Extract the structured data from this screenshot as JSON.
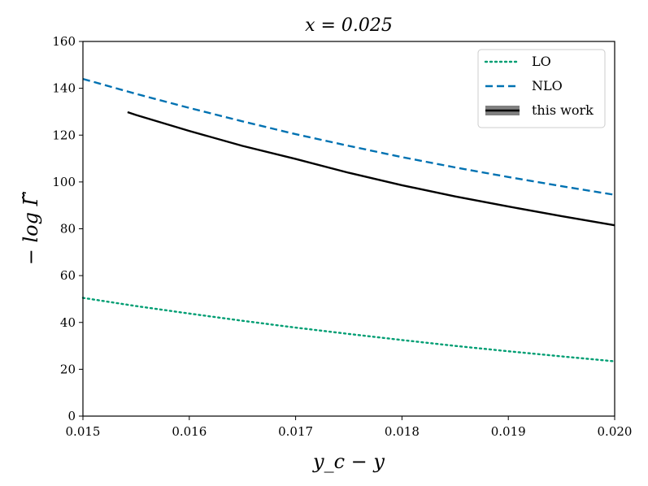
{
  "chart_data": {
    "type": "line",
    "title": "x = 0.025",
    "xlabel": "y_c − y",
    "ylabel": "− log Γ̃",
    "xlim": [
      0.015,
      0.02
    ],
    "ylim": [
      0,
      160
    ],
    "xticks": [
      0.015,
      0.016,
      0.017,
      0.018,
      0.019,
      0.02
    ],
    "xtick_labels": [
      "0.015",
      "0.016",
      "0.017",
      "0.018",
      "0.019",
      "0.020"
    ],
    "yticks": [
      0,
      20,
      40,
      60,
      80,
      100,
      120,
      140,
      160
    ],
    "ytick_labels": [
      "0",
      "20",
      "40",
      "60",
      "80",
      "100",
      "120",
      "140",
      "160"
    ],
    "grid": false,
    "legend_position": "top-right",
    "series": [
      {
        "name": "LO",
        "style": "dotted",
        "color": "#009e73",
        "x": [
          0.015,
          0.0155,
          0.016,
          0.0165,
          0.017,
          0.0175,
          0.018,
          0.0185,
          0.019,
          0.0195,
          0.02
        ],
        "y": [
          50.5,
          47.0,
          43.8,
          40.7,
          37.8,
          35.1,
          32.5,
          30.0,
          27.7,
          25.5,
          23.4
        ]
      },
      {
        "name": "NLO",
        "style": "dashed",
        "color": "#0072b2",
        "x": [
          0.015,
          0.0155,
          0.016,
          0.0165,
          0.017,
          0.0175,
          0.018,
          0.0185,
          0.019,
          0.0195,
          0.02
        ],
        "y": [
          144.0,
          137.6,
          131.6,
          125.9,
          120.4,
          115.4,
          110.6,
          106.2,
          102.1,
          98.2,
          94.5
        ]
      },
      {
        "name": "this work",
        "style": "solid",
        "color": "#000000",
        "band_color": "#808080",
        "x": [
          0.01542,
          0.0155,
          0.016,
          0.0165,
          0.017,
          0.0175,
          0.018,
          0.0185,
          0.019,
          0.0195,
          0.02
        ],
        "y": [
          129.8,
          128.6,
          121.8,
          115.4,
          109.8,
          103.9,
          98.6,
          93.8,
          89.5,
          85.4,
          81.5
        ]
      }
    ]
  }
}
